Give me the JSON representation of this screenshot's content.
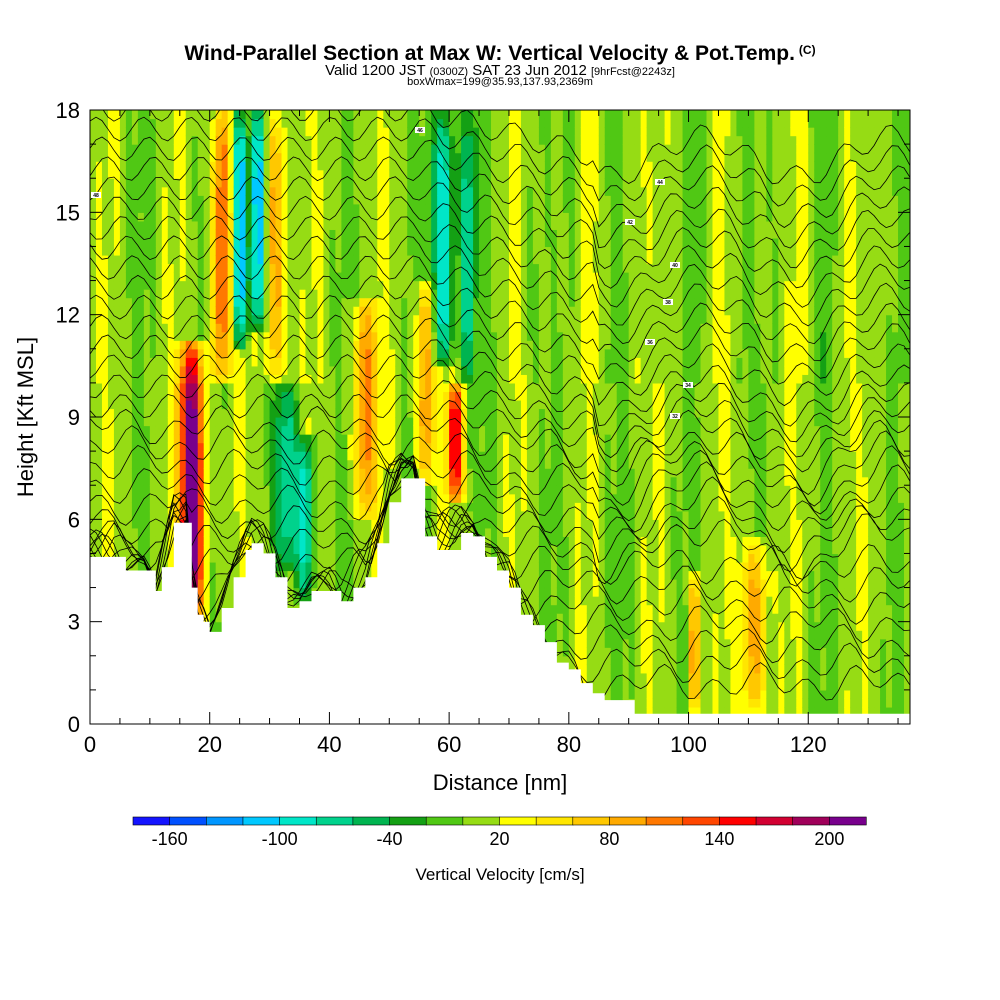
{
  "title": {
    "main": "Wind-Parallel Section at Max W: Vertical Velocity & Pot.Temp.",
    "copyright": "(C)",
    "valid_prefix": "Valid 1200 JST",
    "valid_utc": "(0300Z)",
    "valid_date": "SAT 23 Jun 2012",
    "forecast": "[9hrFcst@2243z]",
    "box_info": "boxWmax=199@35.93,137.93,2369m"
  },
  "chart_data": {
    "type": "heatmap",
    "xlabel": "Distance [nm]",
    "ylabel": "Height [Kft MSL]",
    "xlim": [
      0,
      137
    ],
    "ylim": [
      0,
      18
    ],
    "x_ticks": [
      "0",
      "20",
      "40",
      "60",
      "80",
      "100",
      "120"
    ],
    "x_tick_values": [
      0,
      20,
      40,
      60,
      80,
      100,
      120
    ],
    "y_ticks": [
      "0",
      "3",
      "6",
      "9",
      "12",
      "15",
      "18"
    ],
    "y_tick_values": [
      0,
      3,
      6,
      9,
      12,
      15,
      18
    ],
    "colorbar": {
      "title": "Vertical Velocity [cm/s]",
      "labels": [
        "-160",
        "-100",
        "-40",
        "20",
        "80",
        "140",
        "200"
      ],
      "label_values": [
        -160,
        -100,
        -40,
        20,
        80,
        140,
        200
      ],
      "levels": [
        -180,
        -160,
        -140,
        -120,
        -100,
        -80,
        -60,
        -40,
        -20,
        0,
        20,
        40,
        60,
        80,
        100,
        120,
        140,
        160,
        180,
        200,
        220
      ],
      "colors": [
        "#1414ff",
        "#0050ff",
        "#0096ff",
        "#00c8ff",
        "#00e6c8",
        "#00d28c",
        "#00b450",
        "#14a014",
        "#50c814",
        "#96dc14",
        "#ffff00",
        "#ffe600",
        "#ffc800",
        "#ffaa00",
        "#ff7800",
        "#ff4600",
        "#ff0000",
        "#d20032",
        "#a0005a",
        "#78008c"
      ]
    },
    "terrain": [
      {
        "x": 0,
        "y": 4.9
      },
      {
        "x": 4,
        "y": 4.9
      },
      {
        "x": 6,
        "y": 4.5
      },
      {
        "x": 9,
        "y": 4.5
      },
      {
        "x": 11,
        "y": 3.9
      },
      {
        "x": 12,
        "y": 4.6
      },
      {
        "x": 14,
        "y": 5.9
      },
      {
        "x": 16,
        "y": 5.9
      },
      {
        "x": 17,
        "y": 4.0
      },
      {
        "x": 18,
        "y": 3.2
      },
      {
        "x": 19,
        "y": 3.0
      },
      {
        "x": 20,
        "y": 2.7
      },
      {
        "x": 22,
        "y": 3.4
      },
      {
        "x": 24,
        "y": 4.3
      },
      {
        "x": 26,
        "y": 5.1
      },
      {
        "x": 27,
        "y": 5.3
      },
      {
        "x": 29,
        "y": 5.0
      },
      {
        "x": 31,
        "y": 4.3
      },
      {
        "x": 33,
        "y": 3.4
      },
      {
        "x": 35,
        "y": 3.6
      },
      {
        "x": 37,
        "y": 3.9
      },
      {
        "x": 40,
        "y": 3.9
      },
      {
        "x": 42,
        "y": 3.6
      },
      {
        "x": 44,
        "y": 4.0
      },
      {
        "x": 46,
        "y": 4.3
      },
      {
        "x": 48,
        "y": 5.3
      },
      {
        "x": 50,
        "y": 6.5
      },
      {
        "x": 52,
        "y": 7.2
      },
      {
        "x": 54,
        "y": 7.2
      },
      {
        "x": 56,
        "y": 5.5
      },
      {
        "x": 58,
        "y": 5.1
      },
      {
        "x": 62,
        "y": 5.6
      },
      {
        "x": 64,
        "y": 5.5
      },
      {
        "x": 66,
        "y": 4.9
      },
      {
        "x": 68,
        "y": 4.5
      },
      {
        "x": 70,
        "y": 4.0
      },
      {
        "x": 72,
        "y": 3.2
      },
      {
        "x": 74,
        "y": 2.9
      },
      {
        "x": 76,
        "y": 2.4
      },
      {
        "x": 78,
        "y": 1.8
      },
      {
        "x": 80,
        "y": 1.6
      },
      {
        "x": 82,
        "y": 1.2
      },
      {
        "x": 84,
        "y": 0.9
      },
      {
        "x": 86,
        "y": 0.7
      },
      {
        "x": 89,
        "y": 0.7
      },
      {
        "x": 91,
        "y": 0.3
      },
      {
        "x": 137,
        "y": 0.3
      }
    ],
    "updraft_columns": [
      {
        "x": 17,
        "y0": 2.5,
        "y1": 11.2,
        "w": 225,
        "width": 3
      },
      {
        "x": 22,
        "y0": 10.0,
        "y1": 18,
        "w": 130,
        "width": 2.5
      },
      {
        "x": 25,
        "y0": 11.0,
        "y1": 18,
        "w": -140,
        "width": 1.8
      },
      {
        "x": 28,
        "y0": 11.5,
        "y1": 18,
        "w": -130,
        "width": 1.8
      },
      {
        "x": 31,
        "y0": 10.0,
        "y1": 18,
        "w": 100,
        "width": 2.5
      },
      {
        "x": 33,
        "y0": 4.5,
        "y1": 10.0,
        "w": -60,
        "width": 3
      },
      {
        "x": 36,
        "y0": 3.5,
        "y1": 8.5,
        "w": -90,
        "width": 2.2
      },
      {
        "x": 46,
        "y0": 6.0,
        "y1": 12.5,
        "w": 100,
        "width": 3
      },
      {
        "x": 56,
        "y0": 7.0,
        "y1": 13.0,
        "w": 110,
        "width": 2
      },
      {
        "x": 59,
        "y0": 10.5,
        "y1": 18,
        "w": -110,
        "width": 2.5
      },
      {
        "x": 61,
        "y0": 6.5,
        "y1": 10.0,
        "w": 160,
        "width": 1.8
      },
      {
        "x": 63,
        "y0": 10.0,
        "y1": 18,
        "w": -70,
        "width": 2
      },
      {
        "x": 101,
        "y0": 0.3,
        "y1": 4.4,
        "w": 150,
        "width": 1.0
      },
      {
        "x": 111,
        "y0": 0.3,
        "y1": 5.4,
        "w": 100,
        "width": 3
      }
    ],
    "potential_temperature_labels": [
      "48",
      "46",
      "44",
      "42",
      "40",
      "38",
      "36",
      "34",
      "32"
    ]
  }
}
